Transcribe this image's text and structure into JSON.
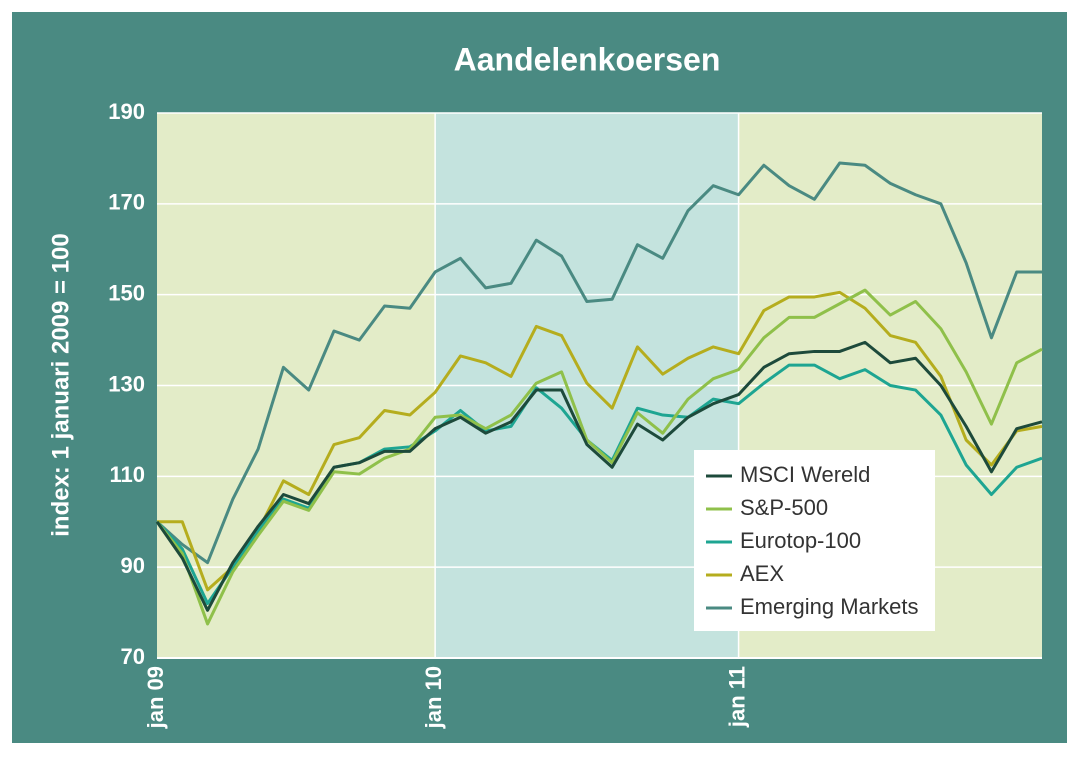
{
  "chart_data": {
    "type": "line",
    "title": "Aandelenkoersen",
    "y_label": "index: 1 januari 2009 = 100",
    "categories": [
      "jan 09",
      null,
      null,
      null,
      null,
      null,
      null,
      null,
      null,
      null,
      null,
      "jan 10",
      null,
      null,
      null,
      null,
      null,
      null,
      null,
      null,
      null,
      null,
      null,
      "jan 11",
      null,
      null,
      null,
      null,
      null,
      null,
      null,
      null,
      null,
      null,
      null,
      null
    ],
    "ylim": [
      70,
      190
    ],
    "yticks": [
      70,
      90,
      110,
      130,
      150,
      170,
      190
    ],
    "grid": true,
    "legend": "lower right",
    "series": [
      {
        "name": "MSCI Wereld",
        "color": "#1d4a3b",
        "values": [
          100,
          92,
          80.5,
          91,
          99,
          106,
          104,
          112,
          113,
          115.5,
          115.5,
          120.5,
          123,
          119.5,
          122,
          129,
          129,
          117,
          112,
          121.5,
          118,
          123,
          126,
          128,
          134,
          137,
          137.5,
          137.5,
          139.5,
          135,
          136,
          130,
          121,
          111,
          120.5,
          122
        ]
      },
      {
        "name": "S&P-500",
        "color": "#8fc04a",
        "values": [
          100,
          93,
          77.5,
          89,
          97,
          104.5,
          102.5,
          111,
          110.5,
          114,
          116,
          123,
          123.5,
          120.5,
          123.5,
          130.5,
          133,
          118,
          113,
          124,
          119.5,
          127,
          131.5,
          133.5,
          140.5,
          145,
          145,
          148,
          151,
          145.5,
          148.5,
          142.5,
          133,
          121.5,
          135,
          138
        ]
      },
      {
        "name": "Eurotop-100",
        "color": "#1ea592",
        "values": [
          100,
          94,
          82,
          90,
          98,
          105,
          103,
          112,
          113,
          116,
          116.5,
          120,
          124.5,
          120,
          121,
          129.5,
          125,
          118,
          113.5,
          125,
          123.5,
          123,
          127,
          126,
          130.5,
          134.5,
          134.5,
          131.5,
          133.5,
          130,
          129,
          123.5,
          112.5,
          106,
          112,
          114
        ]
      },
      {
        "name": "AEX",
        "color": "#b5ad1e",
        "values": [
          100,
          100,
          85,
          90,
          98,
          109,
          106,
          117,
          118.5,
          124.5,
          123.5,
          128.5,
          136.5,
          135,
          132,
          143,
          141,
          130.5,
          125,
          138.5,
          132.5,
          136,
          138.5,
          137,
          146.5,
          149.5,
          149.5,
          150.5,
          147,
          141,
          139.5,
          132,
          118,
          112.5,
          120,
          121
        ]
      },
      {
        "name": "Emerging Markets",
        "color": "#4a8a82",
        "values": [
          100,
          95,
          91,
          105,
          116,
          134,
          129,
          142,
          140,
          147.5,
          147,
          155,
          158,
          151.5,
          152.5,
          162,
          158.5,
          148.5,
          149,
          161,
          158,
          168.5,
          174,
          172,
          178.5,
          174,
          171,
          179,
          178.5,
          174.5,
          172,
          170,
          157,
          140.5,
          155,
          155
        ]
      }
    ]
  }
}
